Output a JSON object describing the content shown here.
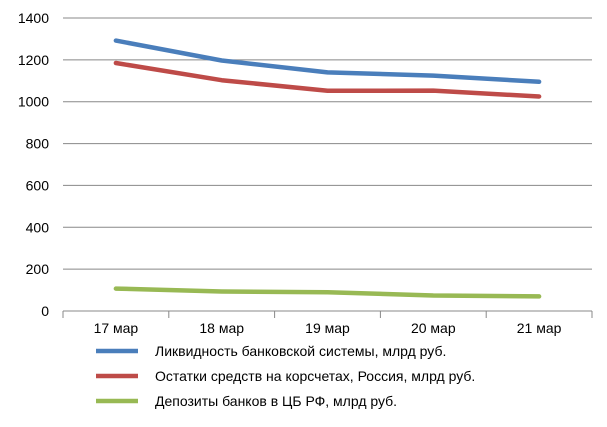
{
  "chart_data": {
    "type": "line",
    "categories": [
      "17 мар",
      "18 мар",
      "19 мар",
      "20 мар",
      "21 мар"
    ],
    "ylim": [
      0,
      1400
    ],
    "yticks": [
      0,
      200,
      400,
      600,
      800,
      1000,
      1200,
      1400
    ],
    "grid": true,
    "legend_position": "bottom",
    "series": [
      {
        "name": "Ликвидность банковской системы, млрд руб.",
        "color": "#4a7ebb",
        "values": [
          1292,
          1197,
          1140,
          1125,
          1095
        ]
      },
      {
        "name": "Остатки средств на корсчетах, Россия, млрд руб.",
        "color": "#be4b48",
        "values": [
          1185,
          1103,
          1052,
          1053,
          1025
        ]
      },
      {
        "name": "Депозиты банков в ЦБ РФ, млрд руб.",
        "color": "#98b954",
        "values": [
          107,
          93,
          90,
          74,
          70
        ]
      }
    ]
  }
}
